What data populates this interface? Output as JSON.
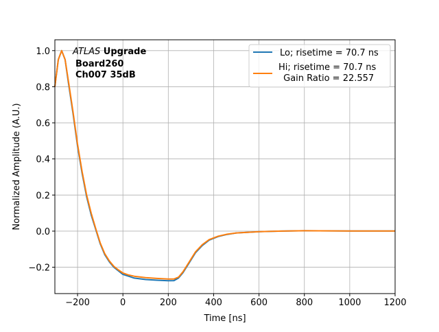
{
  "chart_data": {
    "type": "line",
    "title": "",
    "xlabel": "Time [ns]",
    "ylabel": "Normalized Amplitude (A.U.)",
    "xlim": [
      -300,
      1200
    ],
    "ylim": [
      -0.346,
      1.06
    ],
    "xticks": [
      -200,
      0,
      200,
      400,
      600,
      800,
      1000,
      1200
    ],
    "xtick_labels": [
      "−200",
      "0",
      "200",
      "400",
      "600",
      "800",
      "1000",
      "1200"
    ],
    "yticks": [
      -0.2,
      0.0,
      0.2,
      0.4,
      0.6,
      0.8,
      1.0
    ],
    "ytick_labels": [
      "−0.2",
      "0.0",
      "0.2",
      "0.4",
      "0.6",
      "0.8",
      "1.0"
    ],
    "grid": true,
    "legend_position": "top-right",
    "annotation": {
      "line1_italic": "ATLAS",
      "line1_bold": " Upgrade",
      "line2": "Board260",
      "line3": "Ch007 35dB"
    },
    "series": [
      {
        "name": "Lo; risetime = 70.7 ns",
        "color": "#1f77b4",
        "x": [
          -300,
          -285,
          -270,
          -255,
          -240,
          -220,
          -200,
          -180,
          -160,
          -140,
          -120,
          -100,
          -80,
          -60,
          -40,
          -20,
          0,
          25,
          50,
          100,
          150,
          200,
          225,
          245,
          265,
          290,
          320,
          350,
          380,
          420,
          460,
          500,
          600,
          700,
          800,
          1000,
          1200
        ],
        "y": [
          0.8,
          0.95,
          1.0,
          0.95,
          0.82,
          0.65,
          0.47,
          0.32,
          0.19,
          0.09,
          0.01,
          -0.07,
          -0.13,
          -0.17,
          -0.2,
          -0.22,
          -0.24,
          -0.25,
          -0.26,
          -0.268,
          -0.272,
          -0.275,
          -0.274,
          -0.26,
          -0.23,
          -0.18,
          -0.12,
          -0.08,
          -0.05,
          -0.03,
          -0.018,
          -0.01,
          -0.003,
          0.0,
          0.002,
          0.001,
          0.001
        ]
      },
      {
        "name": "Hi; risetime = 70.7 ns\n Gain Ratio = 22.557",
        "name_line1": "Hi; risetime = 70.7 ns",
        "name_line2": " Gain Ratio = 22.557",
        "color": "#ff7f0e",
        "x": [
          -300,
          -285,
          -270,
          -255,
          -240,
          -220,
          -200,
          -180,
          -160,
          -140,
          -120,
          -100,
          -80,
          -60,
          -40,
          -20,
          0,
          25,
          50,
          100,
          150,
          200,
          225,
          245,
          265,
          290,
          320,
          350,
          380,
          420,
          460,
          500,
          600,
          700,
          800,
          1000,
          1200
        ],
        "y": [
          0.8,
          0.95,
          1.0,
          0.95,
          0.83,
          0.66,
          0.48,
          0.33,
          0.2,
          0.1,
          0.015,
          -0.065,
          -0.125,
          -0.165,
          -0.195,
          -0.215,
          -0.232,
          -0.243,
          -0.25,
          -0.258,
          -0.262,
          -0.265,
          -0.265,
          -0.255,
          -0.225,
          -0.175,
          -0.115,
          -0.075,
          -0.047,
          -0.028,
          -0.017,
          -0.01,
          -0.003,
          0.0,
          0.002,
          0.001,
          0.001
        ]
      }
    ]
  }
}
